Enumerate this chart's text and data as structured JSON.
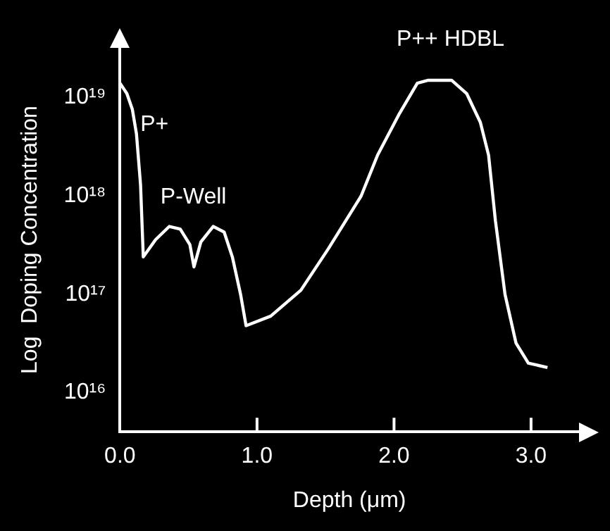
{
  "chart_data": {
    "type": "line",
    "xlabel": "Depth (μm)",
    "ylabel": "Log  Doping Concentration",
    "x": [
      0,
      0.05,
      0.09,
      0.12,
      0.15,
      0.17,
      0.26,
      0.36,
      0.44,
      0.51,
      0.54,
      0.59,
      0.68,
      0.76,
      0.82,
      0.88,
      0.92,
      1.1,
      1.32,
      1.52,
      1.76,
      1.88,
      2.04,
      2.17,
      2.25,
      2.42,
      2.53,
      2.63,
      2.69,
      2.74,
      2.81,
      2.89,
      2.98,
      3.12
    ],
    "series": [
      {
        "color": "#ffffff",
        "values": [
          1.4e+19,
          1.1e+19,
          7.6e+18,
          4.3e+18,
          1.3e+18,
          2.4e+17,
          3.6e+17,
          4.9e+17,
          4.6e+17,
          3.2e+17,
          1.9e+17,
          3.4e+17,
          4.9e+17,
          4.3e+17,
          2.4e+17,
          1e+17,
          4.8e+16,
          6e+16,
          1.1e+17,
          2.9e+17,
          1e+18,
          2.6e+18,
          6.9e+18,
          1.4e+19,
          1.5e+19,
          1.5e+19,
          1.1e+19,
          5.6e+18,
          2.6e+18,
          5.6e+17,
          1e+17,
          3.2e+16,
          2e+16,
          1.8e+16
        ]
      }
    ],
    "xlim": [
      0,
      3.35
    ],
    "xticks": [
      {
        "value": 0,
        "label": "0.0"
      },
      {
        "value": 1,
        "label": "1.0"
      },
      {
        "value": 2,
        "label": "2.0"
      },
      {
        "value": 3,
        "label": "3.0"
      }
    ],
    "ylim": [
      4000000000000000.0,
      3.2e+19
    ],
    "yticks": [
      {
        "value": 1e+16,
        "label": "10¹⁶"
      },
      {
        "value": 1e+17,
        "label": "10¹⁷"
      },
      {
        "value": 1e+18,
        "label": "10¹⁸"
      },
      {
        "value": 1e+19,
        "label": "10¹⁹"
      }
    ],
    "log": "y",
    "grid": false,
    "legend": false,
    "marker": "none",
    "line_style": "solid",
    "annotations": [
      "P+",
      "P-Well",
      "P++ HDBL"
    ]
  }
}
